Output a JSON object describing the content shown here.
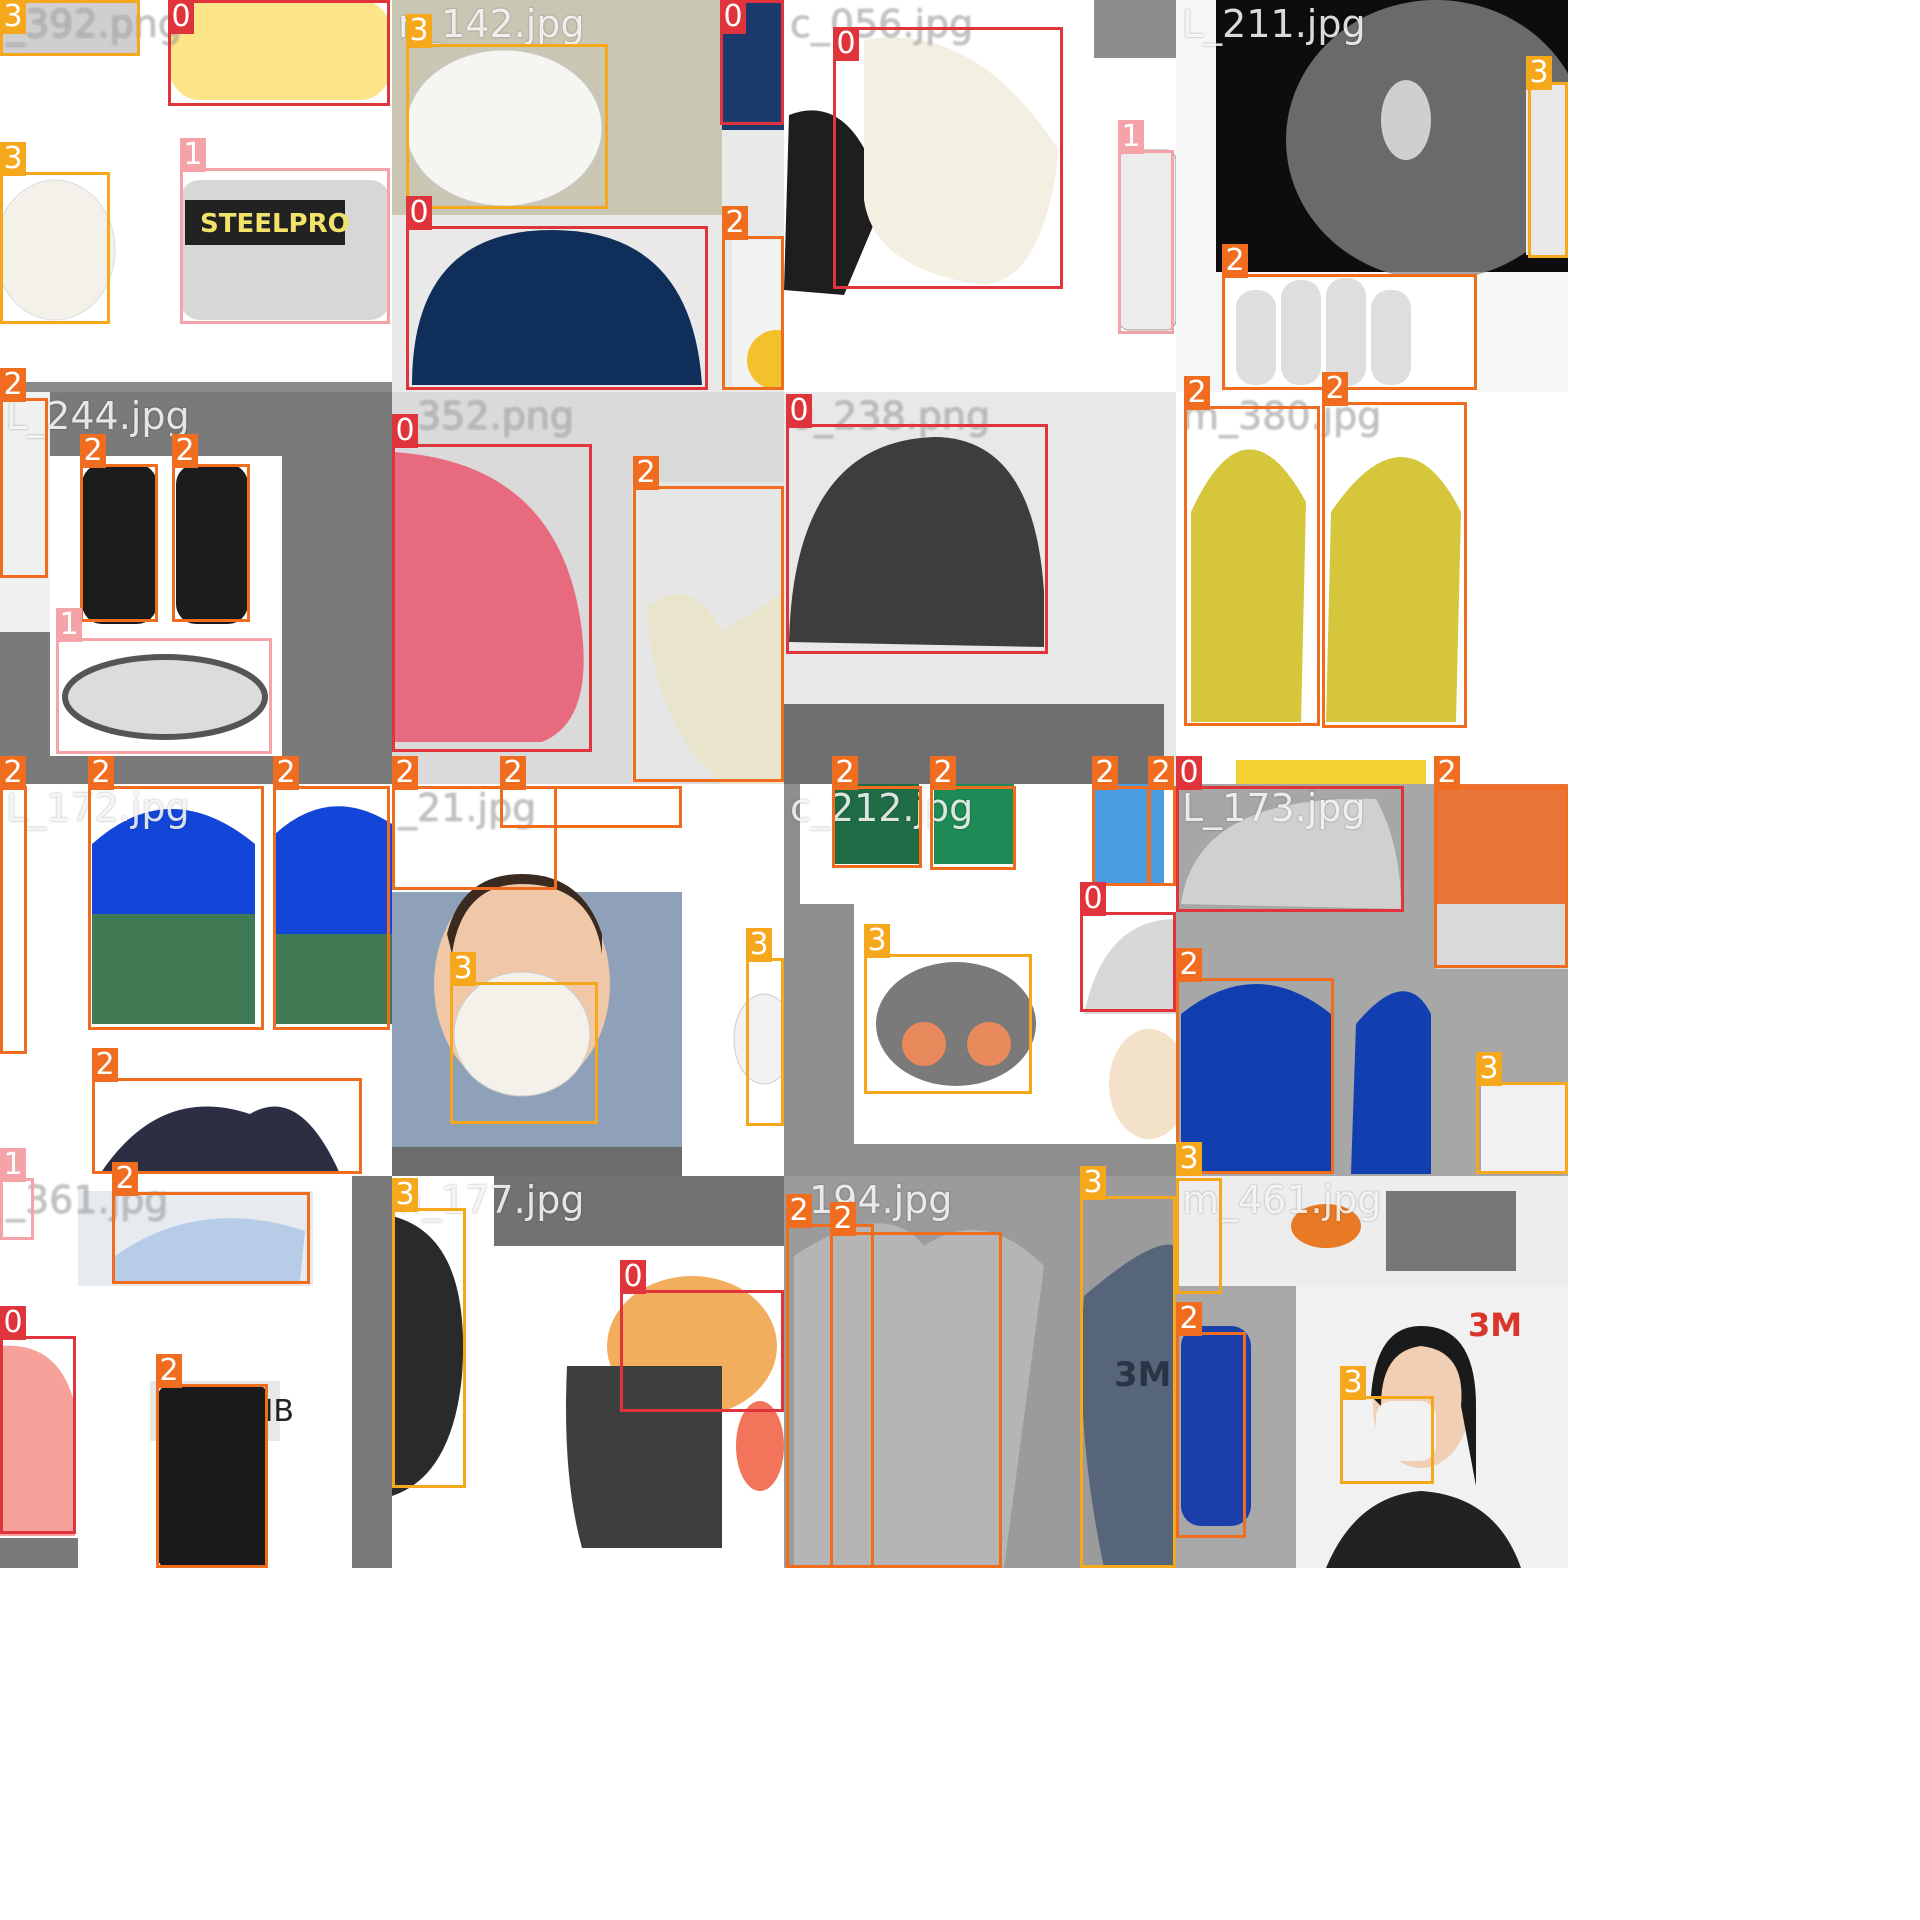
{
  "mosaic": {
    "description_tiles": [
      {
        "name": "tile-392",
        "title": "_392.png"
      },
      {
        "name": "tile-142",
        "title": "n_142.jpg"
      },
      {
        "name": "tile-056",
        "title": "c_056.jpg"
      },
      {
        "name": "tile-211",
        "title": "L_211.jpg"
      },
      {
        "name": "tile-244",
        "title": "L_244.jpg"
      },
      {
        "name": "tile-352",
        "title": "_352.png"
      },
      {
        "name": "tile-238",
        "title": "0_238.png"
      },
      {
        "name": "tile-380",
        "title": "m_380.jpg"
      },
      {
        "name": "tile-172",
        "title": "L_172.jpg"
      },
      {
        "name": "tile-21",
        "title": "_21.jpg"
      },
      {
        "name": "tile-212",
        "title": "c_212.jpg"
      },
      {
        "name": "tile-173",
        "title": "L_173.jpg"
      },
      {
        "name": "tile-361",
        "title": "_361.jpg"
      },
      {
        "name": "tile-177",
        "title": "n_177.jpg"
      },
      {
        "name": "tile-194",
        "title": "_194.jpg"
      },
      {
        "name": "tile-461",
        "title": "m_461.jpg"
      }
    ],
    "labels": {
      "c0": "0",
      "c1": "1",
      "c2": "2",
      "c3": "3"
    },
    "brand_text": {
      "steelpro": "STEELPRO",
      "brand_3m": "3M",
      "usclim": "USCLIMB"
    },
    "colors": {
      "class0": "#e0343c",
      "class1": "#f4a3a8",
      "class2": "#f06c1f",
      "class3": "#f6a81c"
    }
  }
}
